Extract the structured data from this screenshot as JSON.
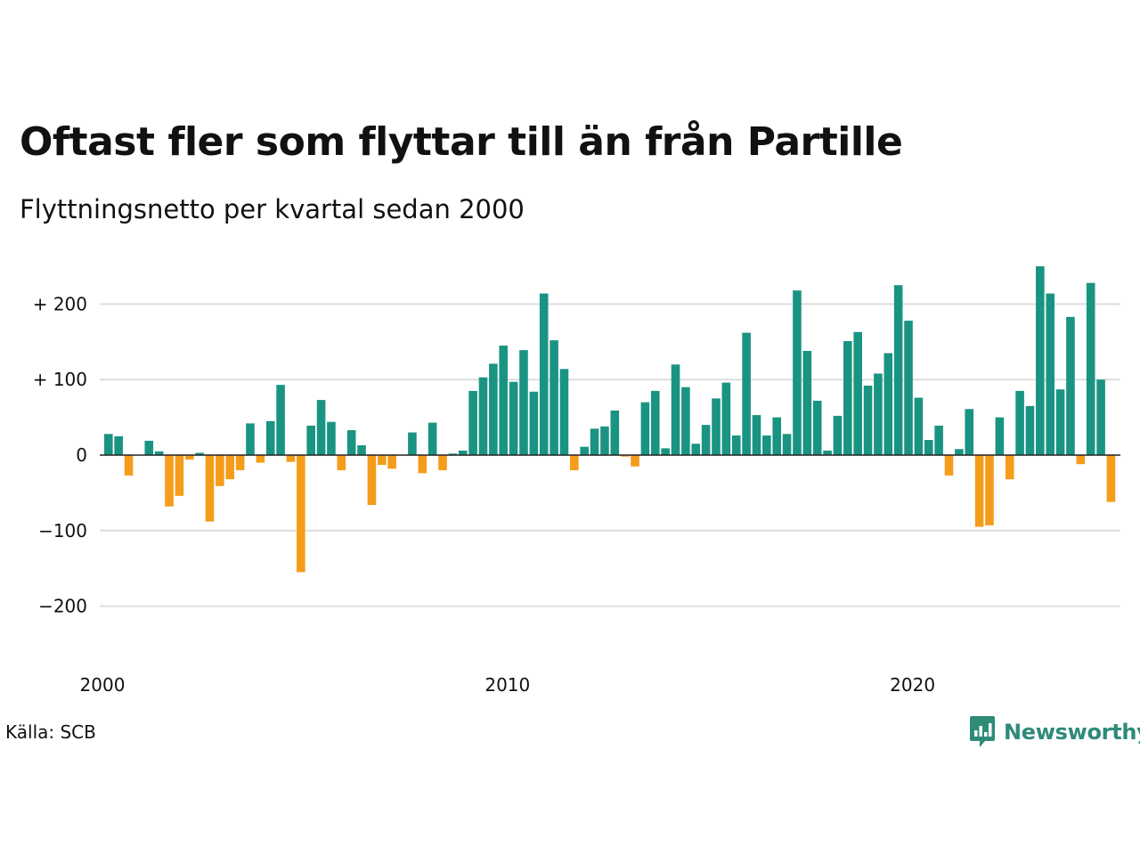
{
  "title": "Oftast fler som flyttar till än från Partille",
  "subtitle": "Flyttningsnetto per kvartal sedan 2000",
  "source": "Källa: SCB",
  "brand": {
    "name": "Newsworthy",
    "icon": "newsworthy-logo-icon"
  },
  "colors": {
    "positive": "#1a9482",
    "negative": "#f59d1a",
    "grid": "#dddddd",
    "zero": "#222222",
    "brand": "#2e8b78"
  },
  "chart_data": {
    "type": "bar",
    "title": "Oftast fler som flyttar till än från Partille",
    "subtitle": "Flyttningsnetto per kvartal sedan 2000",
    "xlabel": "",
    "ylabel": "",
    "x_start_year": 2000,
    "periods_per_year": 4,
    "x_ticks": [
      {
        "value": 2000,
        "label": "2000"
      },
      {
        "value": 2010,
        "label": "2010"
      },
      {
        "value": 2020,
        "label": "2020"
      }
    ],
    "y_ticks": [
      {
        "value": 200,
        "label": "+ 200"
      },
      {
        "value": 100,
        "label": "+ 100"
      },
      {
        "value": 0,
        "label": "0"
      },
      {
        "value": -100,
        "label": "−100"
      },
      {
        "value": -200,
        "label": "−200"
      }
    ],
    "ylim": [
      -260,
      260
    ],
    "grid": true,
    "values": [
      28,
      25,
      -27,
      0,
      19,
      5,
      -68,
      -54,
      -6,
      3,
      -88,
      -41,
      -32,
      -20,
      42,
      -10,
      45,
      93,
      -9,
      -155,
      39,
      73,
      44,
      -20,
      33,
      13,
      -66,
      -13,
      -18,
      0,
      30,
      -24,
      43,
      -20,
      2,
      6,
      85,
      103,
      121,
      145,
      97,
      139,
      84,
      214,
      152,
      114,
      -20,
      11,
      35,
      38,
      59,
      -2,
      -15,
      70,
      85,
      9,
      120,
      90,
      15,
      40,
      75,
      96,
      26,
      162,
      53,
      26,
      50,
      28,
      218,
      138,
      72,
      6,
      52,
      151,
      163,
      92,
      108,
      135,
      225,
      178,
      76,
      20,
      39,
      -27,
      8,
      61,
      -95,
      -93,
      50,
      -32,
      85,
      65,
      250,
      214,
      87,
      183,
      -12,
      228,
      100,
      -62
    ]
  }
}
